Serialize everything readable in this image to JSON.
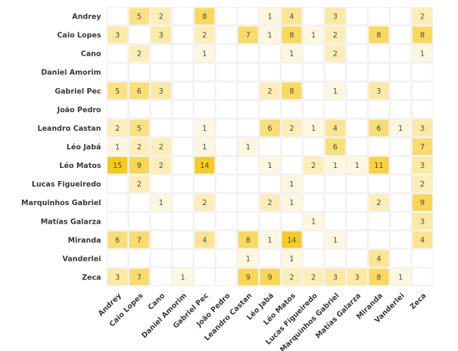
{
  "chart_data": {
    "type": "heatmap",
    "title": "",
    "xlabel": "",
    "ylabel": "",
    "rows": [
      "Andrey",
      "Caio Lopes",
      "Cano",
      "Daniel Amorim",
      "Gabriel Pec",
      "João Pedro",
      "Leandro Castan",
      "Léo Jabá",
      "Léo Matos",
      "Lucas Figueiredo",
      "Marquinhos Gabriel",
      "Matías Galarza",
      "Miranda",
      "Vanderlei",
      "Zeca"
    ],
    "columns": [
      "Andrey",
      "Caio Lopes",
      "Cano",
      "Daniel Amorim",
      "Gabriel Pec",
      "João Pedro",
      "Leandro Castan",
      "Léo Jabá",
      "Léo Matos",
      "Lucas Figueiredo",
      "Marquinhos Gabriel",
      "Matías Galarza",
      "Miranda",
      "Vanderlei",
      "Zeca"
    ],
    "values": [
      [
        null,
        5,
        2,
        null,
        8,
        null,
        null,
        1,
        4,
        null,
        3,
        null,
        null,
        null,
        2
      ],
      [
        3,
        null,
        3,
        null,
        2,
        null,
        7,
        1,
        8,
        1,
        2,
        null,
        8,
        null,
        8
      ],
      [
        null,
        2,
        null,
        null,
        1,
        null,
        null,
        null,
        1,
        null,
        2,
        null,
        null,
        null,
        1
      ],
      [
        null,
        null,
        null,
        null,
        null,
        null,
        null,
        null,
        null,
        null,
        null,
        null,
        null,
        null,
        null
      ],
      [
        5,
        6,
        3,
        null,
        null,
        null,
        null,
        2,
        8,
        null,
        1,
        null,
        3,
        null,
        null
      ],
      [
        null,
        null,
        null,
        null,
        null,
        null,
        null,
        null,
        null,
        null,
        null,
        null,
        null,
        null,
        null
      ],
      [
        2,
        5,
        null,
        null,
        1,
        null,
        null,
        6,
        2,
        1,
        4,
        null,
        6,
        1,
        3
      ],
      [
        1,
        2,
        2,
        null,
        1,
        null,
        1,
        null,
        null,
        null,
        6,
        null,
        null,
        null,
        7
      ],
      [
        15,
        9,
        2,
        null,
        14,
        null,
        null,
        1,
        null,
        2,
        1,
        1,
        11,
        null,
        3
      ],
      [
        null,
        2,
        null,
        null,
        null,
        null,
        null,
        null,
        1,
        null,
        null,
        null,
        null,
        null,
        2
      ],
      [
        null,
        null,
        1,
        null,
        2,
        null,
        null,
        2,
        1,
        null,
        null,
        null,
        2,
        null,
        9
      ],
      [
        null,
        null,
        null,
        null,
        null,
        null,
        null,
        null,
        null,
        1,
        null,
        null,
        null,
        null,
        3
      ],
      [
        6,
        7,
        null,
        null,
        4,
        null,
        8,
        1,
        14,
        null,
        1,
        null,
        null,
        null,
        4
      ],
      [
        null,
        null,
        null,
        null,
        null,
        null,
        1,
        null,
        1,
        null,
        null,
        null,
        4,
        null,
        null
      ],
      [
        3,
        7,
        null,
        1,
        null,
        null,
        9,
        9,
        2,
        2,
        3,
        3,
        8,
        1,
        null
      ]
    ],
    "color_low": "#fef7e0",
    "color_high": "#f9c91a",
    "empty_color": "#ffffff",
    "grid_color": "#f2f2f2",
    "legend": "none"
  }
}
